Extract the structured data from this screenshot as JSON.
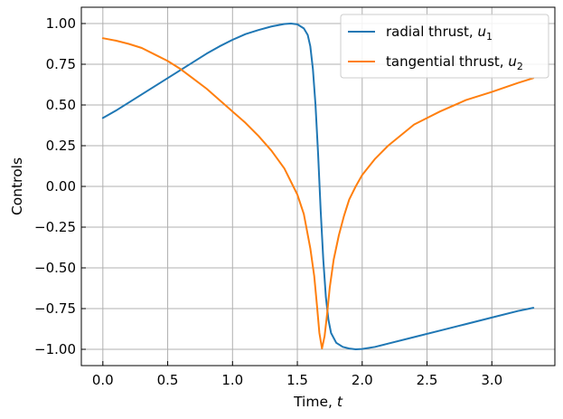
{
  "chart_data": {
    "type": "line",
    "xlabel": "Time, ",
    "xlabel_var": "t",
    "ylabel": "Controls",
    "xlim": [
      -0.166,
      3.486
    ],
    "ylim": [
      -1.1,
      1.1
    ],
    "xticks": [
      0.0,
      0.5,
      1.0,
      1.5,
      2.0,
      2.5,
      3.0
    ],
    "xtick_labels": [
      "0.0",
      "0.5",
      "1.0",
      "1.5",
      "2.0",
      "2.5",
      "3.0"
    ],
    "yticks": [
      1.0,
      0.75,
      0.5,
      0.25,
      0.0,
      -0.25,
      -0.5,
      -0.75,
      -1.0
    ],
    "ytick_labels": [
      "1.00",
      "0.75",
      "0.50",
      "0.25",
      "0.00",
      "−0.25",
      "−0.50",
      "−0.75",
      "−1.00"
    ],
    "grid": true,
    "legend_position": "top-right",
    "series": [
      {
        "name": "radial thrust, ",
        "name_sub": "u",
        "name_subscript": "1",
        "color": "#1f77b4",
        "x": [
          0.0,
          0.1,
          0.2,
          0.3,
          0.4,
          0.5,
          0.6,
          0.7,
          0.8,
          0.9,
          1.0,
          1.1,
          1.2,
          1.3,
          1.4,
          1.45,
          1.5,
          1.55,
          1.58,
          1.6,
          1.62,
          1.64,
          1.66,
          1.68,
          1.7,
          1.72,
          1.74,
          1.76,
          1.8,
          1.85,
          1.9,
          1.95,
          2.0,
          2.1,
          2.2,
          2.4,
          2.6,
          2.8,
          3.0,
          3.2,
          3.32
        ],
        "y": [
          0.42,
          0.465,
          0.515,
          0.565,
          0.615,
          0.665,
          0.715,
          0.765,
          0.815,
          0.86,
          0.9,
          0.935,
          0.96,
          0.982,
          0.997,
          1.0,
          0.995,
          0.97,
          0.93,
          0.86,
          0.72,
          0.5,
          0.2,
          -0.15,
          -0.45,
          -0.68,
          -0.82,
          -0.9,
          -0.96,
          -0.985,
          -0.995,
          -1.0,
          -0.998,
          -0.985,
          -0.965,
          -0.925,
          -0.885,
          -0.845,
          -0.805,
          -0.765,
          -0.745
        ]
      },
      {
        "name": "tangential thrust, ",
        "name_sub": "u",
        "name_subscript": "2",
        "color": "#ff7f0e",
        "x": [
          0.0,
          0.1,
          0.2,
          0.3,
          0.4,
          0.5,
          0.6,
          0.7,
          0.8,
          0.9,
          1.0,
          1.1,
          1.2,
          1.3,
          1.4,
          1.5,
          1.55,
          1.6,
          1.63,
          1.65,
          1.67,
          1.69,
          1.71,
          1.73,
          1.75,
          1.78,
          1.82,
          1.86,
          1.9,
          1.95,
          2.0,
          2.1,
          2.2,
          2.4,
          2.6,
          2.8,
          3.0,
          3.2,
          3.32
        ],
        "y": [
          0.91,
          0.895,
          0.875,
          0.85,
          0.81,
          0.77,
          0.72,
          0.66,
          0.6,
          0.53,
          0.46,
          0.39,
          0.31,
          0.22,
          0.11,
          -0.05,
          -0.17,
          -0.38,
          -0.55,
          -0.72,
          -0.9,
          -0.995,
          -0.92,
          -0.78,
          -0.62,
          -0.45,
          -0.3,
          -0.18,
          -0.08,
          0.0,
          0.07,
          0.17,
          0.25,
          0.38,
          0.46,
          0.53,
          0.58,
          0.635,
          0.665
        ]
      }
    ]
  }
}
